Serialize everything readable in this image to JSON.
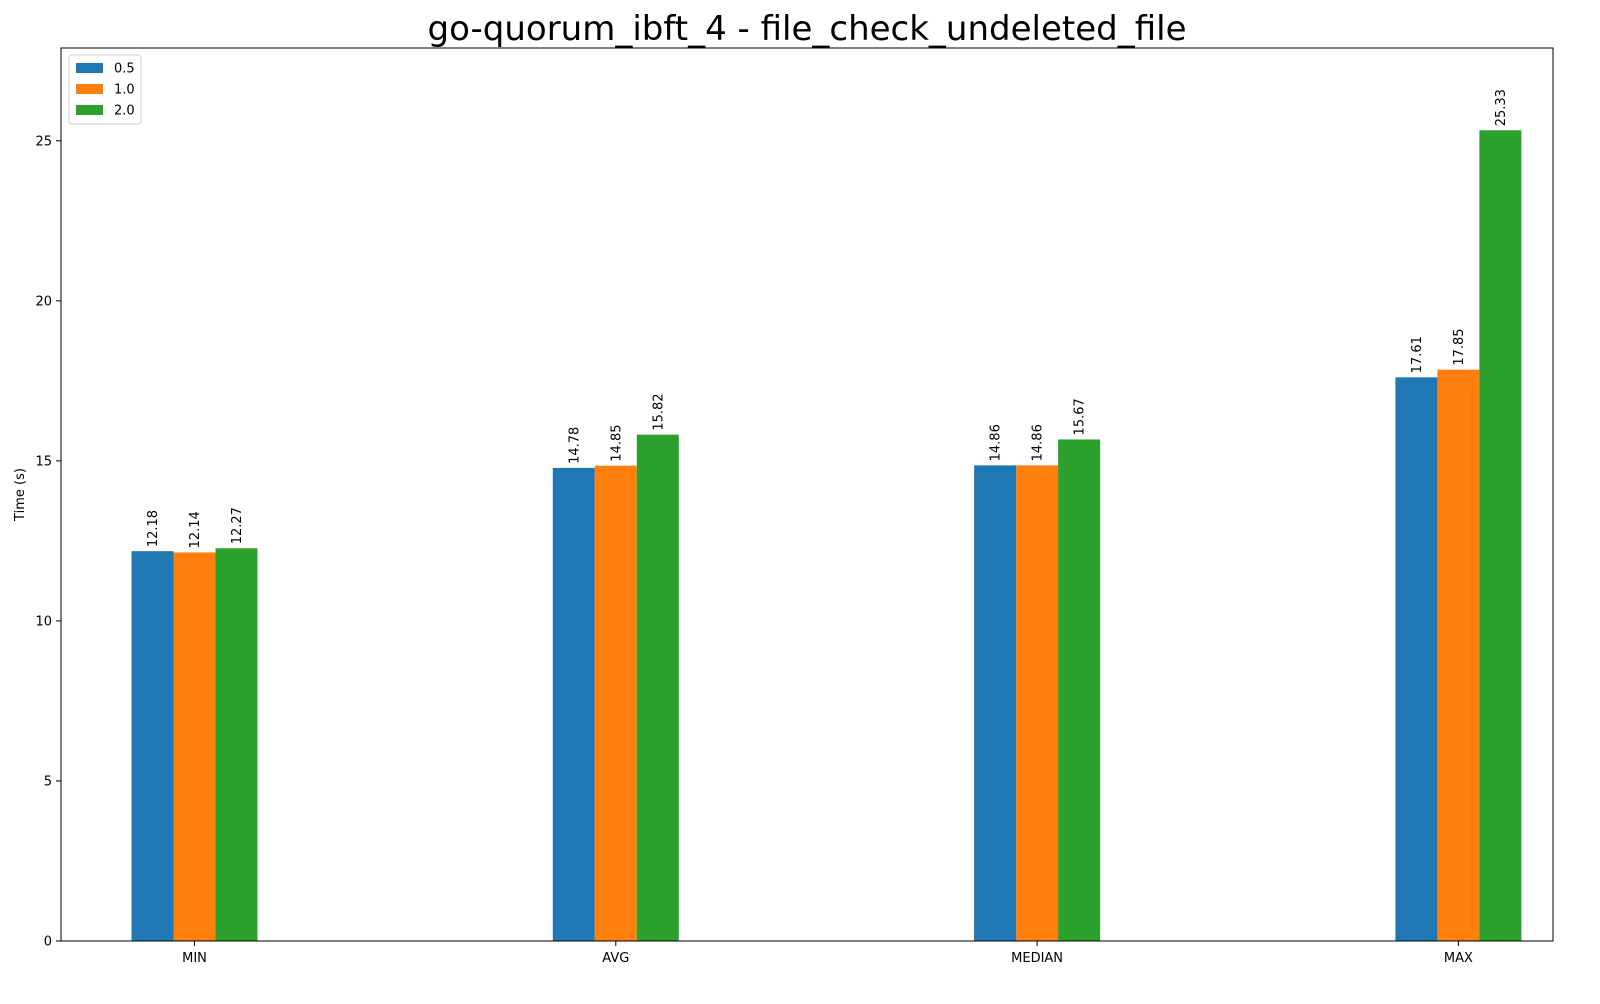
{
  "chart_data": {
    "type": "bar",
    "title": "go-quorum_ibft_4 - file_check_undeleted_file",
    "xlabel": "",
    "ylabel": "Time (s)",
    "categories": [
      "MIN",
      "AVG",
      "MEDIAN",
      "MAX"
    ],
    "series": [
      {
        "name": "0.5",
        "color": "#1f77b4",
        "values": [
          12.18,
          14.78,
          14.86,
          17.61
        ]
      },
      {
        "name": "1.0",
        "color": "#ff7f0e",
        "values": [
          12.14,
          14.85,
          14.86,
          17.85
        ]
      },
      {
        "name": "2.0",
        "color": "#2ca02c",
        "values": [
          12.27,
          15.82,
          15.67,
          25.33
        ]
      }
    ],
    "ylim": [
      0,
      27.9
    ],
    "yticks": [
      0,
      5,
      10,
      15,
      20,
      25
    ],
    "grid": false,
    "legend_position": "top-left",
    "bar_labels": true,
    "bar_label_rotation": "vertical"
  }
}
